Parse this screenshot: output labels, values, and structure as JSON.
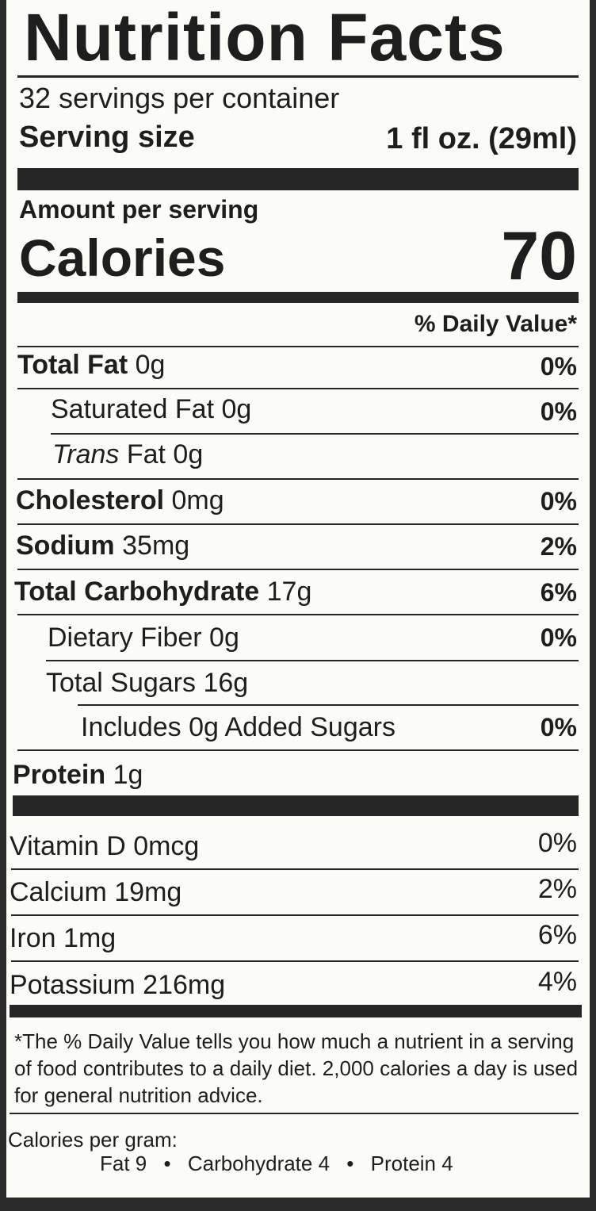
{
  "title": "Nutrition Facts",
  "servings_per_container": "32 servings per container",
  "serving_size_label": "Serving size",
  "serving_size_value": "1 fl oz. (29ml)",
  "amount_per_serving": "Amount per serving",
  "calories_label": "Calories",
  "calories_value": "70",
  "daily_value_header": "% Daily Value*",
  "nutrients": {
    "total_fat": {
      "name": "Total Fat",
      "amount": "0g",
      "dv": "0%"
    },
    "saturated_fat": {
      "name": "Saturated Fat 0g",
      "dv": "0%"
    },
    "trans_fat": {
      "name_italic": "Trans",
      "name_rest": "Fat 0g"
    },
    "cholesterol": {
      "name": "Cholesterol",
      "amount": "0mg",
      "dv": "0%"
    },
    "sodium": {
      "name": "Sodium",
      "amount": "35mg",
      "dv": "2%"
    },
    "total_carbohydrate": {
      "name": "Total Carbohydrate",
      "amount": "17g",
      "dv": "6%"
    },
    "dietary_fiber": {
      "name": "Dietary Fiber 0g",
      "dv": "0%"
    },
    "total_sugars": {
      "name": "Total Sugars 16g"
    },
    "added_sugars": {
      "name": "Includes 0g Added Sugars",
      "dv": "0%"
    },
    "protein": {
      "name": "Protein",
      "amount": "1g"
    }
  },
  "vitamins": {
    "vitamin_d": {
      "name": "Vitamin D 0mcg",
      "dv": "0%"
    },
    "calcium": {
      "name": "Calcium 19mg",
      "dv": "2%"
    },
    "iron": {
      "name": "Iron 1mg",
      "dv": "6%"
    },
    "potassium": {
      "name": "Potassium 216mg",
      "dv": "4%"
    }
  },
  "footnote": "*The % Daily Value tells you how much a nutrient in a serving of food contributes to a daily diet. 2,000 calories a day is used for general nutrition advice.",
  "calories_per_gram": {
    "label": "Calories per gram:",
    "fat": "Fat 9",
    "carbohydrate": "Carbohydrate 4",
    "protein": "Protein 4",
    "separator": "•"
  }
}
